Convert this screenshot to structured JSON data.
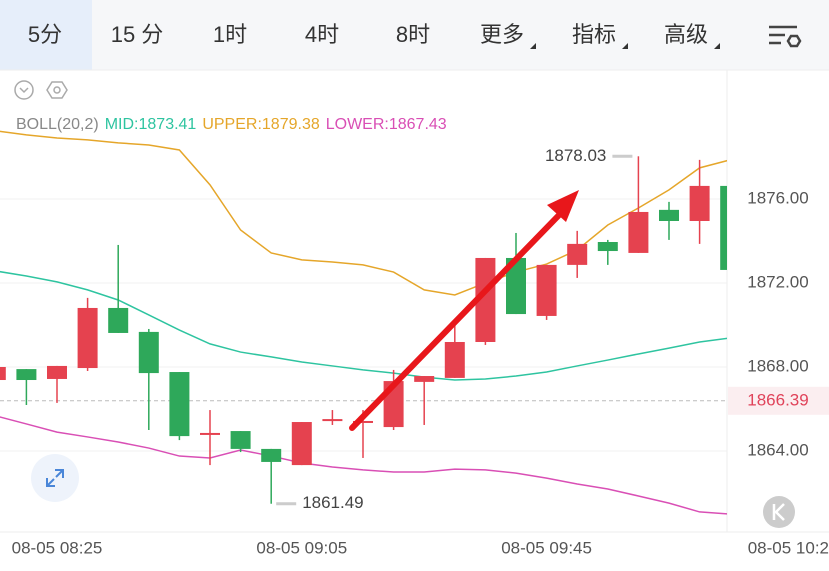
{
  "tabs": [
    "5分",
    "15 分",
    "1时",
    "4时",
    "8时",
    "更多",
    "指标",
    "高级"
  ],
  "chart_data": {
    "type": "candlestick",
    "indicator": {
      "title": "BOLL(20,2)",
      "labels": [
        "MID:1873.41",
        "UPPER:1879.38",
        "LOWER:1867.43"
      ]
    },
    "categories": [
      null,
      null,
      "08-05 08:25",
      null,
      null,
      null,
      null,
      null,
      null,
      null,
      "08-05 09:05",
      null,
      null,
      null,
      null,
      null,
      null,
      null,
      "08-05 09:45",
      null,
      null,
      null,
      null,
      null,
      null,
      null,
      "08-05 10:2"
    ],
    "candles": {
      "up_color": "#e5424f",
      "down_color": "#2ea85a",
      "open": [
        1867.38,
        1867.9,
        1867.43,
        1867.95,
        1870.81,
        1869.67,
        1867.76,
        1864.86,
        1864.95,
        1864.1,
        1863.33,
        1865.52,
        1865.43,
        1865.14,
        1867.29,
        1867.48,
        1869.19,
        1873.19,
        1870.43,
        1872.86,
        1873.95,
        1873.43,
        1875.48,
        1874.95,
        1876.62,
        null,
        null
      ],
      "high": [
        1868.0,
        1867.9,
        1868.05,
        1871.29,
        1873.81,
        1869.81,
        1867.76,
        1865.95,
        1864.95,
        1864.1,
        1865.38,
        1865.95,
        1865.95,
        1867.86,
        1867.57,
        1870.0,
        1873.19,
        1874.38,
        1872.86,
        1874.48,
        1874.05,
        1878.03,
        1875.86,
        1877.86,
        1876.62,
        null,
        null
      ],
      "low": [
        1867.38,
        1866.19,
        1866.29,
        1867.81,
        1869.62,
        1865.0,
        1864.52,
        1863.33,
        1863.95,
        1861.49,
        1863.33,
        1865.24,
        1863.67,
        1865.0,
        1865.24,
        1867.48,
        1869.05,
        1870.52,
        1870.24,
        1872.24,
        1872.86,
        1873.43,
        1874.05,
        1873.86,
        1872.62,
        null,
        null
      ],
      "close": [
        1868.0,
        1867.38,
        1868.05,
        1870.81,
        1869.62,
        1867.71,
        1864.71,
        1864.86,
        1864.1,
        1863.48,
        1865.38,
        1865.52,
        1865.43,
        1867.33,
        1867.57,
        1869.19,
        1873.19,
        1870.52,
        1872.86,
        1873.86,
        1873.52,
        1875.38,
        1874.95,
        1876.62,
        1872.62,
        null,
        null
      ]
    },
    "lines": [
      {
        "color": "#2ec4a0",
        "values": [
          1872.57,
          1872.33,
          1872.05,
          1871.67,
          1871.19,
          1870.48,
          1869.76,
          1869.1,
          1868.71,
          1868.48,
          1868.24,
          1868.05,
          1867.86,
          1867.71,
          1867.52,
          1867.38,
          1867.43,
          1867.57,
          1867.76,
          1868.05,
          1868.33,
          1868.62,
          1868.9,
          1869.19,
          1869.38,
          null,
          null
        ]
      },
      {
        "color": "#e5a62a",
        "values": [
          1879.24,
          1879.05,
          1878.9,
          1878.81,
          1878.67,
          1878.57,
          1878.33,
          1876.67,
          1874.52,
          1873.43,
          1873.1,
          1873.0,
          1872.86,
          1872.52,
          1871.67,
          1871.43,
          1872.0,
          1872.52,
          1872.9,
          1873.57,
          1874.76,
          1875.57,
          1876.43,
          1877.48,
          1877.86,
          null,
          null
        ]
      },
      {
        "color": "#d94fb5",
        "values": [
          1865.67,
          1865.29,
          1864.9,
          1864.67,
          1864.43,
          1864.14,
          1863.76,
          1863.67,
          1864.05,
          1863.76,
          1863.43,
          1863.24,
          1863.1,
          1863.0,
          1863.0,
          1863.14,
          1863.1,
          1862.95,
          1862.71,
          1862.43,
          1862.19,
          1861.86,
          1861.52,
          1861.1,
          1861.0,
          null,
          null
        ]
      }
    ],
    "ylim": [
      1860.24,
      1881.9
    ],
    "yticks": [
      {
        "value": 1864,
        "label": "1864.00"
      },
      {
        "value": 1868,
        "label": "1868.00"
      },
      {
        "value": 1872,
        "label": "1872.00"
      },
      {
        "value": 1876,
        "label": "1876.00"
      }
    ],
    "grid": true,
    "last_price": 1866.39,
    "last_price_color": "#e0435a"
  }
}
